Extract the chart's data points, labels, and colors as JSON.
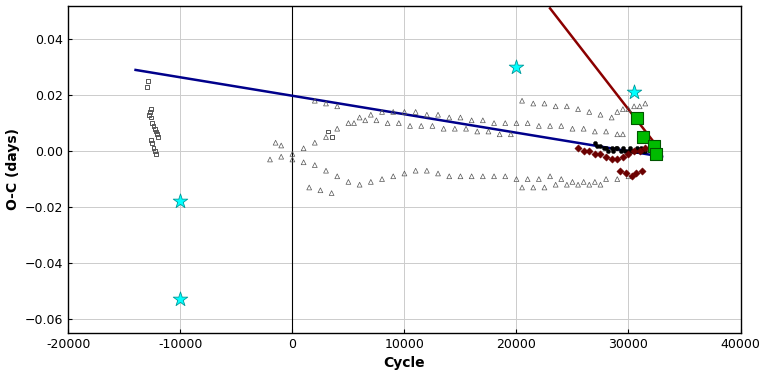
{
  "xlabel": "Cycle",
  "ylabel": "O-C (days)",
  "xlim": [
    -20000,
    40000
  ],
  "ylim": [
    -0.065,
    0.052
  ],
  "yticks": [
    -0.06,
    -0.04,
    -0.02,
    0.0,
    0.02,
    0.04
  ],
  "xticks": [
    -20000,
    -10000,
    0,
    10000,
    20000,
    30000,
    40000
  ],
  "photo_squares": [
    [
      -13000,
      0.023
    ],
    [
      -12900,
      0.025
    ],
    [
      -12600,
      0.015
    ],
    [
      -12700,
      0.014
    ],
    [
      -12800,
      0.013
    ],
    [
      -12600,
      0.012
    ],
    [
      -12500,
      0.01
    ],
    [
      -12400,
      0.009
    ],
    [
      -12300,
      0.008
    ],
    [
      -12200,
      0.007
    ],
    [
      -12100,
      0.006
    ],
    [
      -12000,
      0.005
    ],
    [
      -12600,
      0.004
    ],
    [
      -12500,
      0.003
    ],
    [
      -12400,
      0.001
    ],
    [
      -12300,
      0.0
    ],
    [
      -12200,
      -0.001
    ],
    [
      3200,
      0.007
    ],
    [
      3500,
      0.005
    ]
  ],
  "visual_triangles_upper": [
    [
      -1500,
      0.003
    ],
    [
      -1000,
      0.002
    ],
    [
      0,
      -0.001
    ],
    [
      1000,
      0.001
    ],
    [
      2000,
      0.003
    ],
    [
      3000,
      0.005
    ],
    [
      4000,
      0.008
    ],
    [
      5000,
      0.01
    ],
    [
      6000,
      0.012
    ],
    [
      7000,
      0.013
    ],
    [
      8000,
      0.014
    ],
    [
      9000,
      0.014
    ],
    [
      10000,
      0.014
    ],
    [
      11000,
      0.014
    ],
    [
      12000,
      0.013
    ],
    [
      13000,
      0.013
    ],
    [
      14000,
      0.012
    ],
    [
      15000,
      0.012
    ],
    [
      16000,
      0.011
    ],
    [
      17000,
      0.011
    ],
    [
      18000,
      0.01
    ],
    [
      19000,
      0.01
    ],
    [
      20000,
      0.01
    ],
    [
      21000,
      0.01
    ],
    [
      22000,
      0.009
    ],
    [
      23000,
      0.009
    ],
    [
      24000,
      0.009
    ],
    [
      25000,
      0.008
    ],
    [
      26000,
      0.008
    ],
    [
      27000,
      0.007
    ],
    [
      28000,
      0.007
    ],
    [
      29000,
      0.006
    ],
    [
      29500,
      0.006
    ],
    [
      20500,
      0.018
    ],
    [
      21500,
      0.017
    ],
    [
      22500,
      0.017
    ],
    [
      23500,
      0.016
    ],
    [
      24500,
      0.016
    ],
    [
      25500,
      0.015
    ],
    [
      26500,
      0.014
    ],
    [
      27500,
      0.013
    ],
    [
      28500,
      0.012
    ],
    [
      29000,
      0.014
    ],
    [
      29500,
      0.015
    ],
    [
      30000,
      0.015
    ],
    [
      30500,
      0.016
    ],
    [
      31000,
      0.016
    ],
    [
      31500,
      0.017
    ],
    [
      2000,
      0.018
    ],
    [
      3000,
      0.017
    ],
    [
      4000,
      0.016
    ],
    [
      5500,
      0.01
    ],
    [
      6500,
      0.011
    ],
    [
      7500,
      0.011
    ],
    [
      8500,
      0.01
    ],
    [
      9500,
      0.01
    ],
    [
      10500,
      0.009
    ],
    [
      11500,
      0.009
    ],
    [
      12500,
      0.009
    ],
    [
      13500,
      0.008
    ],
    [
      14500,
      0.008
    ],
    [
      15500,
      0.008
    ],
    [
      16500,
      0.007
    ],
    [
      17500,
      0.007
    ],
    [
      18500,
      0.006
    ],
    [
      19500,
      0.006
    ]
  ],
  "visual_triangles_lower": [
    [
      -2000,
      -0.003
    ],
    [
      -1000,
      -0.002
    ],
    [
      0,
      -0.003
    ],
    [
      1000,
      -0.004
    ],
    [
      2000,
      -0.005
    ],
    [
      3000,
      -0.007
    ],
    [
      4000,
      -0.009
    ],
    [
      5000,
      -0.011
    ],
    [
      6000,
      -0.012
    ],
    [
      7000,
      -0.011
    ],
    [
      8000,
      -0.01
    ],
    [
      9000,
      -0.009
    ],
    [
      10000,
      -0.008
    ],
    [
      11000,
      -0.007
    ],
    [
      12000,
      -0.007
    ],
    [
      13000,
      -0.008
    ],
    [
      14000,
      -0.009
    ],
    [
      15000,
      -0.009
    ],
    [
      16000,
      -0.009
    ],
    [
      17000,
      -0.009
    ],
    [
      18000,
      -0.009
    ],
    [
      19000,
      -0.009
    ],
    [
      20000,
      -0.01
    ],
    [
      21000,
      -0.01
    ],
    [
      22000,
      -0.01
    ],
    [
      23000,
      -0.009
    ],
    [
      24000,
      -0.01
    ],
    [
      25000,
      -0.011
    ],
    [
      26000,
      -0.011
    ],
    [
      27000,
      -0.011
    ],
    [
      28000,
      -0.01
    ],
    [
      29000,
      -0.01
    ],
    [
      30000,
      -0.009
    ],
    [
      1500,
      -0.013
    ],
    [
      2500,
      -0.014
    ],
    [
      3500,
      -0.015
    ],
    [
      20500,
      -0.013
    ],
    [
      21500,
      -0.013
    ],
    [
      22500,
      -0.013
    ],
    [
      23500,
      -0.012
    ],
    [
      24500,
      -0.012
    ],
    [
      25500,
      -0.012
    ],
    [
      26500,
      -0.012
    ],
    [
      27500,
      -0.012
    ]
  ],
  "photo_electric": [
    [
      27000,
      0.003
    ],
    [
      27500,
      0.002
    ],
    [
      28000,
      0.001
    ],
    [
      28500,
      0.001
    ],
    [
      29000,
      0.001
    ],
    [
      29500,
      0.001
    ],
    [
      30000,
      0.0
    ],
    [
      30200,
      0.0
    ],
    [
      30500,
      0.0
    ],
    [
      30800,
      0.001
    ],
    [
      31000,
      0.0
    ],
    [
      31200,
      0.0
    ],
    [
      31500,
      0.0
    ],
    [
      32000,
      0.001
    ],
    [
      27200,
      0.002
    ],
    [
      27800,
      0.001
    ],
    [
      28200,
      0.0
    ],
    [
      28600,
      0.0
    ],
    [
      28900,
      0.001
    ],
    [
      29300,
      0.0
    ],
    [
      29700,
      0.0
    ],
    [
      30100,
      0.001
    ],
    [
      30400,
      0.0
    ],
    [
      30700,
      0.0
    ],
    [
      31100,
      0.001
    ],
    [
      31400,
      0.0
    ]
  ],
  "ccd_diamonds": [
    [
      25500,
      0.001
    ],
    [
      26000,
      0.0
    ],
    [
      26500,
      0.0
    ],
    [
      27000,
      -0.001
    ],
    [
      27500,
      -0.001
    ],
    [
      28000,
      -0.002
    ],
    [
      28500,
      -0.003
    ],
    [
      29000,
      -0.003
    ],
    [
      29500,
      -0.002
    ],
    [
      30000,
      -0.001
    ],
    [
      30500,
      0.0
    ],
    [
      31000,
      0.0
    ],
    [
      31500,
      0.001
    ],
    [
      32000,
      0.001
    ],
    [
      29200,
      -0.007
    ],
    [
      29800,
      -0.008
    ],
    [
      30300,
      -0.009
    ],
    [
      30700,
      -0.008
    ],
    [
      31200,
      -0.007
    ]
  ],
  "cyan_stars": [
    [
      -10000,
      -0.018
    ],
    [
      -10000,
      -0.053
    ],
    [
      20000,
      0.03
    ],
    [
      30500,
      0.021
    ]
  ],
  "green_squares": [
    [
      30800,
      0.012
    ],
    [
      31300,
      0.005
    ],
    [
      32300,
      0.002
    ],
    [
      32500,
      -0.001
    ]
  ],
  "blue_line_x": [
    -14000,
    33000
  ],
  "blue_line_y": [
    0.029,
    -0.002
  ],
  "red_line_x": [
    23000,
    32500
  ],
  "red_line_y": [
    0.051,
    0.002
  ],
  "photo_color": "#555555",
  "visual_color": "#555555",
  "pe_color": "#000000",
  "ccd_color": "#6b0000",
  "cyan_color": "#00ffff",
  "cyan_edge": "#009999",
  "green_color": "#00bb00",
  "green_edge": "#005500",
  "blue_line_color": "#00008b",
  "red_line_color": "#8b0000",
  "grid_color": "#cccccc",
  "bg_color": "#ffffff"
}
